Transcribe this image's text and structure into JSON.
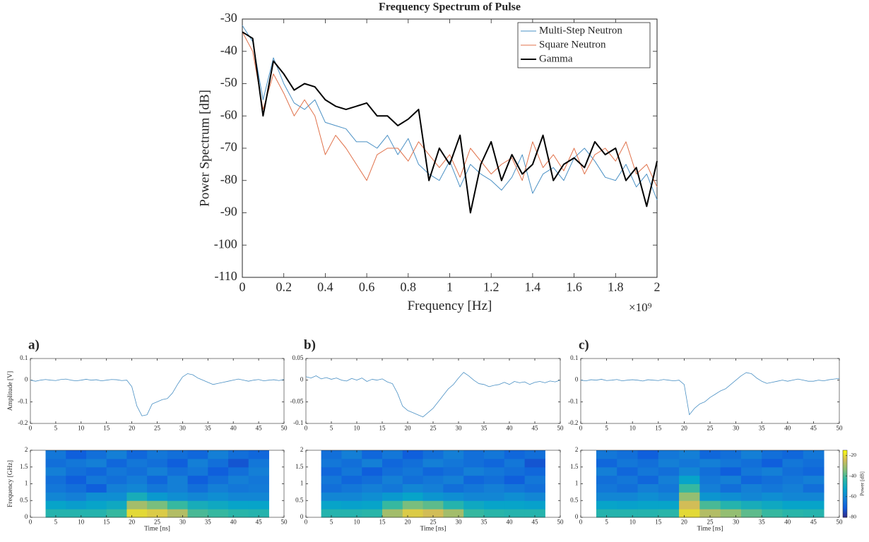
{
  "chart_data": [
    {
      "type": "line",
      "title": "Frequency Spectrum of Pulse",
      "x_label": "Frequency [Hz]",
      "y_label": "Power Spectrum [dB]",
      "x_multiplier": "×10⁹",
      "x": [
        0,
        0.05,
        0.1,
        0.15,
        0.2,
        0.25,
        0.3,
        0.35,
        0.4,
        0.45,
        0.5,
        0.55,
        0.6,
        0.65,
        0.7,
        0.75,
        0.8,
        0.85,
        0.9,
        0.95,
        1,
        1.05,
        1.1,
        1.15,
        1.2,
        1.25,
        1.3,
        1.35,
        1.4,
        1.45,
        1.5,
        1.55,
        1.6,
        1.65,
        1.7,
        1.75,
        1.8,
        1.85,
        1.9,
        1.95,
        2
      ],
      "series": [
        {
          "name": "Multi-Step Neutron",
          "color": "#4a90c4",
          "width": 1,
          "values": [
            -32,
            -37,
            -55,
            -42,
            -50,
            -56,
            -58,
            -55,
            -62,
            -63,
            -64,
            -68,
            -68,
            -70,
            -66,
            -72,
            -67,
            -75,
            -78,
            -80,
            -74,
            -82,
            -75,
            -78,
            -80,
            -83,
            -79,
            -72,
            -84,
            -78,
            -76,
            -80,
            -73,
            -70,
            -74,
            -79,
            -80,
            -75,
            -82,
            -78,
            -86
          ]
        },
        {
          "name": "Square Neutron",
          "color": "#e0714a",
          "width": 1,
          "values": [
            -34,
            -40,
            -58,
            -47,
            -53,
            -60,
            -55,
            -60,
            -72,
            -66,
            -70,
            -75,
            -80,
            -72,
            -70,
            -70,
            -74,
            -68,
            -72,
            -76,
            -72,
            -79,
            -70,
            -74,
            -78,
            -75,
            -73,
            -80,
            -68,
            -76,
            -72,
            -77,
            -70,
            -78,
            -72,
            -70,
            -74,
            -68,
            -78,
            -75,
            -82
          ]
        },
        {
          "name": "Gamma",
          "color": "#000000",
          "width": 2,
          "values": [
            -34,
            -36,
            -60,
            -43,
            -47,
            -52,
            -50,
            -51,
            -55,
            -57,
            -58,
            -57,
            -56,
            -60,
            -60,
            -63,
            -61,
            -58,
            -80,
            -70,
            -75,
            -66,
            -90,
            -75,
            -68,
            -80,
            -72,
            -78,
            -75,
            -66,
            -80,
            -75,
            -73,
            -76,
            -68,
            -72,
            -70,
            -80,
            -76,
            -88,
            -74
          ]
        }
      ],
      "xlim": [
        0,
        2
      ],
      "xticks": [
        0,
        0.2,
        0.4,
        0.6,
        0.8,
        1,
        1.2,
        1.4,
        1.6,
        1.8,
        2
      ],
      "ylim": [
        -110,
        -30
      ],
      "yticks": [
        -110,
        -100,
        -90,
        -80,
        -70,
        -60,
        -50,
        -40,
        -30
      ],
      "legend": "upper right",
      "grid": false
    },
    {
      "type": "line",
      "panel_label": "a)",
      "y_label": "Amplitude [V]",
      "color": "#4a90c4",
      "x": [
        0,
        1,
        2,
        3,
        4,
        5,
        6,
        7,
        8,
        9,
        10,
        11,
        12,
        13,
        14,
        15,
        16,
        17,
        18,
        19,
        20,
        21,
        22,
        23,
        24,
        25,
        26,
        27,
        28,
        29,
        30,
        31,
        32,
        33,
        34,
        35,
        36,
        37,
        38,
        39,
        40,
        41,
        42,
        43,
        44,
        45,
        46,
        47,
        48,
        49,
        50
      ],
      "values": [
        0,
        -0.005,
        0,
        0.003,
        0,
        -0.002,
        0.003,
        0.005,
        0,
        -0.003,
        0,
        0.004,
        0,
        0.002,
        -0.003,
        0,
        0.003,
        0.002,
        -0.002,
        0,
        -0.03,
        -0.12,
        -0.165,
        -0.16,
        -0.11,
        -0.1,
        -0.09,
        -0.085,
        -0.06,
        -0.02,
        0.015,
        0.03,
        0.025,
        0.01,
        0,
        -0.01,
        -0.02,
        -0.015,
        -0.01,
        -0.005,
        0,
        0.005,
        0,
        -0.005,
        0,
        0.003,
        -0.003,
        0,
        0.002,
        -0.002,
        0.003
      ],
      "xlim": [
        0,
        50
      ],
      "xticks": [
        0,
        5,
        10,
        15,
        20,
        25,
        30,
        35,
        40,
        45,
        50
      ],
      "ylim": [
        -0.2,
        0.1
      ],
      "yticks": [
        -0.2,
        -0.1,
        0,
        0.1
      ]
    },
    {
      "type": "line",
      "panel_label": "b)",
      "color": "#4a90c4",
      "x": [
        0,
        1,
        2,
        3,
        4,
        5,
        6,
        7,
        8,
        9,
        10,
        11,
        12,
        13,
        14,
        15,
        16,
        17,
        18,
        19,
        20,
        21,
        22,
        23,
        24,
        25,
        26,
        27,
        28,
        29,
        30,
        31,
        32,
        33,
        34,
        35,
        36,
        37,
        38,
        39,
        40,
        41,
        42,
        43,
        44,
        45,
        46,
        47,
        48,
        49,
        50
      ],
      "values": [
        0.008,
        0.005,
        0.01,
        0.003,
        0.006,
        0.002,
        0.005,
        0,
        -0.002,
        0.004,
        0,
        0.005,
        -0.003,
        0.002,
        0,
        0.003,
        -0.004,
        -0.008,
        -0.03,
        -0.06,
        -0.07,
        -0.075,
        -0.08,
        -0.085,
        -0.075,
        -0.065,
        -0.05,
        -0.035,
        -0.02,
        -0.01,
        0.005,
        0.018,
        0.01,
        0,
        -0.008,
        -0.01,
        -0.015,
        -0.012,
        -0.01,
        -0.005,
        -0.01,
        -0.003,
        -0.006,
        -0.004,
        -0.01,
        -0.005,
        -0.003,
        -0.006,
        -0.002,
        -0.004,
        0
      ],
      "xlim": [
        0,
        50
      ],
      "xticks": [
        0,
        5,
        10,
        15,
        20,
        25,
        30,
        35,
        40,
        45,
        50
      ],
      "ylim": [
        -0.1,
        0.05
      ],
      "yticks": [
        -0.1,
        -0.05,
        0,
        0.05
      ]
    },
    {
      "type": "line",
      "panel_label": "c)",
      "color": "#4a90c4",
      "x": [
        0,
        1,
        2,
        3,
        4,
        5,
        6,
        7,
        8,
        9,
        10,
        11,
        12,
        13,
        14,
        15,
        16,
        17,
        18,
        19,
        20,
        21,
        22,
        23,
        24,
        25,
        26,
        27,
        28,
        29,
        30,
        31,
        32,
        33,
        34,
        35,
        36,
        37,
        38,
        39,
        40,
        41,
        42,
        43,
        44,
        45,
        46,
        47,
        48,
        49,
        50
      ],
      "values": [
        0,
        -0.003,
        0.002,
        0,
        0.004,
        -0.002,
        0,
        0.003,
        -0.003,
        0,
        0.002,
        0,
        -0.004,
        0.002,
        0,
        -0.002,
        0.003,
        0,
        -0.003,
        0,
        -0.02,
        -0.16,
        -0.13,
        -0.11,
        -0.1,
        -0.08,
        -0.065,
        -0.05,
        -0.04,
        -0.02,
        0,
        0.02,
        0.035,
        0.03,
        0.01,
        -0.005,
        -0.015,
        -0.01,
        -0.005,
        0,
        -0.005,
        0,
        0.005,
        0,
        -0.005,
        -0.005,
        0,
        -0.003,
        0.002,
        0.005,
        0.008
      ],
      "xlim": [
        0,
        50
      ],
      "xticks": [
        0,
        5,
        10,
        15,
        20,
        25,
        30,
        35,
        40,
        45,
        50
      ],
      "ylim": [
        -0.2,
        0.1
      ],
      "yticks": [
        -0.2,
        -0.1,
        0,
        0.1
      ]
    },
    {
      "type": "heatmap",
      "x_label": "Time [ns]",
      "y_label": "Frequency [GHz]",
      "x": [
        5,
        9,
        13,
        17,
        21,
        25,
        29,
        33,
        37,
        41,
        45
      ],
      "y": [
        0.125,
        0.375,
        0.625,
        0.875,
        1.125,
        1.375,
        1.625,
        1.875
      ],
      "z": [
        [
          -45,
          -45,
          -45,
          -42,
          -20,
          -22,
          -28,
          -40,
          -42,
          -44,
          -45
        ],
        [
          -52,
          -54,
          -52,
          -50,
          -30,
          -35,
          -42,
          -48,
          -50,
          -52,
          -52
        ],
        [
          -60,
          -62,
          -58,
          -58,
          -48,
          -55,
          -58,
          -60,
          -58,
          -60,
          -60
        ],
        [
          -64,
          -66,
          -70,
          -62,
          -60,
          -64,
          -62,
          -66,
          -62,
          -64,
          -63
        ],
        [
          -66,
          -70,
          -64,
          -66,
          -63,
          -68,
          -62,
          -70,
          -66,
          -62,
          -64
        ],
        [
          -62,
          -66,
          -68,
          -64,
          -66,
          -62,
          -66,
          -64,
          -70,
          -66,
          -62
        ],
        [
          -66,
          -64,
          -62,
          -68,
          -64,
          -66,
          -70,
          -62,
          -66,
          -72,
          -64
        ],
        [
          -64,
          -70,
          -66,
          -62,
          -68,
          -64,
          -66,
          -68,
          -62,
          -66,
          -68
        ]
      ],
      "clim": [
        -80,
        -15
      ],
      "colormap": [
        "#352a87",
        "#0f5cdd",
        "#1481d6",
        "#06a4ca",
        "#2eb7a4",
        "#87bf77",
        "#d1bb59",
        "#f9fb0e"
      ],
      "xlim": [
        0,
        50
      ],
      "xticks": [
        0,
        5,
        10,
        15,
        20,
        25,
        30,
        35,
        40,
        45,
        50
      ],
      "ylim": [
        0,
        2
      ],
      "yticks": [
        0,
        0.5,
        1,
        1.5,
        2
      ]
    },
    {
      "type": "heatmap",
      "x_label": "Time [ns]",
      "x": [
        5,
        9,
        13,
        17,
        21,
        25,
        29,
        33,
        37,
        41,
        45
      ],
      "y": [
        0.125,
        0.375,
        0.625,
        0.875,
        1.125,
        1.375,
        1.625,
        1.875
      ],
      "z": [
        [
          -45,
          -45,
          -44,
          -30,
          -22,
          -24,
          -30,
          -42,
          -44,
          -45,
          -45
        ],
        [
          -52,
          -53,
          -52,
          -42,
          -35,
          -38,
          -45,
          -50,
          -52,
          -52,
          -53
        ],
        [
          -60,
          -60,
          -58,
          -55,
          -52,
          -56,
          -58,
          -60,
          -60,
          -58,
          -60
        ],
        [
          -66,
          -64,
          -62,
          -64,
          -60,
          -62,
          -66,
          -64,
          -62,
          -64,
          -66
        ],
        [
          -64,
          -68,
          -66,
          -62,
          -66,
          -64,
          -62,
          -68,
          -66,
          -70,
          -64
        ],
        [
          -68,
          -64,
          -70,
          -66,
          -64,
          -68,
          -66,
          -62,
          -64,
          -66,
          -68
        ],
        [
          -64,
          -66,
          -62,
          -68,
          -66,
          -62,
          -64,
          -66,
          -68,
          -64,
          -72
        ],
        [
          -66,
          -62,
          -68,
          -64,
          -70,
          -66,
          -62,
          -66,
          -64,
          -68,
          -66
        ]
      ],
      "clim": [
        -80,
        -15
      ],
      "colormap": [
        "#352a87",
        "#0f5cdd",
        "#1481d6",
        "#06a4ca",
        "#2eb7a4",
        "#87bf77",
        "#d1bb59",
        "#f9fb0e"
      ],
      "xlim": [
        0,
        50
      ],
      "xticks": [
        0,
        5,
        10,
        15,
        20,
        25,
        30,
        35,
        40,
        45,
        50
      ],
      "ylim": [
        0,
        2
      ],
      "yticks": [
        0,
        0.5,
        1,
        1.5,
        2
      ]
    },
    {
      "type": "heatmap",
      "x_label": "Time [ns]",
      "colorbar_label": "Power [dB]",
      "colorbar_ticks": [
        -20,
        -40,
        -60,
        -80
      ],
      "x": [
        5,
        9,
        13,
        17,
        21,
        25,
        29,
        33,
        37,
        41,
        45
      ],
      "y": [
        0.125,
        0.375,
        0.625,
        0.875,
        1.125,
        1.375,
        1.625,
        1.875
      ],
      "z": [
        [
          -45,
          -45,
          -45,
          -44,
          -20,
          -28,
          -32,
          -38,
          -42,
          -44,
          -45
        ],
        [
          -52,
          -53,
          -52,
          -52,
          -24,
          -40,
          -45,
          -48,
          -50,
          -52,
          -52
        ],
        [
          -60,
          -60,
          -58,
          -60,
          -32,
          -56,
          -58,
          -60,
          -58,
          -60,
          -60
        ],
        [
          -64,
          -66,
          -62,
          -64,
          -42,
          -62,
          -66,
          -62,
          -64,
          -62,
          -66
        ],
        [
          -66,
          -64,
          -68,
          -62,
          -52,
          -64,
          -62,
          -68,
          -66,
          -64,
          -62
        ],
        [
          -62,
          -68,
          -64,
          -66,
          -60,
          -66,
          -70,
          -64,
          -62,
          -66,
          -68
        ],
        [
          -68,
          -64,
          -66,
          -62,
          -64,
          -62,
          -64,
          -66,
          -70,
          -64,
          -66
        ],
        [
          -64,
          -66,
          -70,
          -64,
          -62,
          -68,
          -66,
          -62,
          -66,
          -68,
          -64
        ]
      ],
      "clim": [
        -80,
        -15
      ],
      "colormap": [
        "#352a87",
        "#0f5cdd",
        "#1481d6",
        "#06a4ca",
        "#2eb7a4",
        "#87bf77",
        "#d1bb59",
        "#f9fb0e"
      ],
      "xlim": [
        0,
        50
      ],
      "xticks": [
        0,
        5,
        10,
        15,
        20,
        25,
        30,
        35,
        40,
        45,
        50
      ],
      "ylim": [
        0,
        2
      ],
      "yticks": [
        0,
        0.5,
        1,
        1.5,
        2
      ]
    }
  ]
}
